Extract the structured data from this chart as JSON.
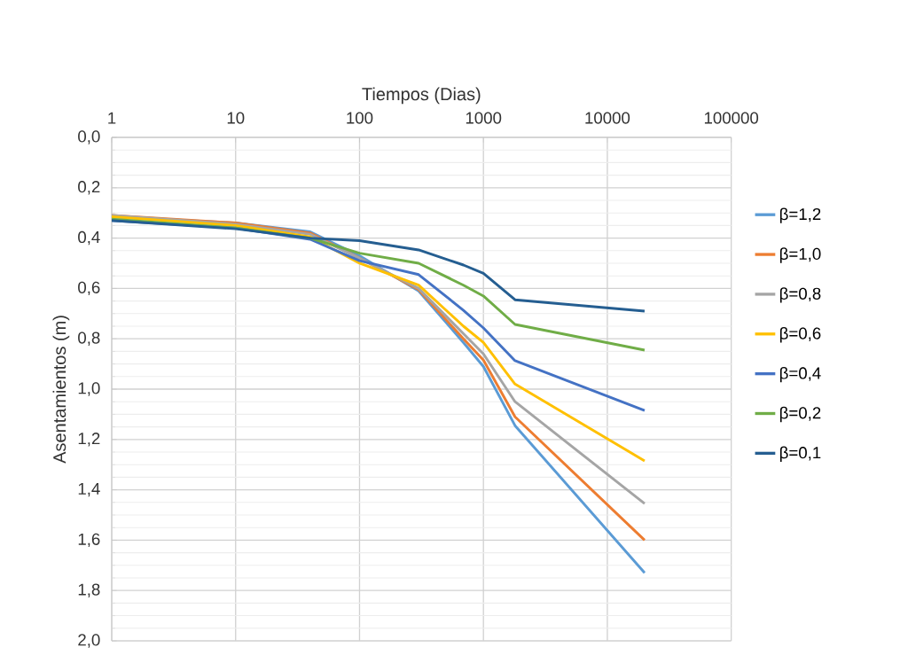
{
  "chart_data": {
    "type": "line",
    "xlabel": "Tiempos (Dias)",
    "ylabel": "Asentamientos (m)",
    "log": "x",
    "grid": true,
    "legend": "right",
    "xlim": [
      1,
      100000
    ],
    "xticks": [
      1,
      10,
      100,
      1000,
      10000,
      100000
    ],
    "ylim": [
      2.0,
      0.0
    ],
    "yticks": [
      {
        "value": 0.0,
        "label": "0,0"
      },
      {
        "value": 0.2,
        "label": "0,2"
      },
      {
        "value": 0.4,
        "label": "0,4"
      },
      {
        "value": 0.6,
        "label": "0,6"
      },
      {
        "value": 0.8,
        "label": "0,8"
      },
      {
        "value": 1.0,
        "label": "1,0"
      },
      {
        "value": 1.2,
        "label": "1,2"
      },
      {
        "value": 1.4,
        "label": "1,4"
      },
      {
        "value": 1.6,
        "label": "1,6"
      },
      {
        "value": 1.8,
        "label": "1,8"
      },
      {
        "value": 2.0,
        "label": "2,0"
      }
    ],
    "x": [
      1,
      10,
      40,
      100,
      300,
      690,
      1000,
      1800,
      20000
    ],
    "series": [
      {
        "name": "β=1,2",
        "color": "#5b9bd5",
        "values": [
          0.315,
          0.34,
          0.375,
          0.47,
          0.61,
          0.815,
          0.91,
          1.145,
          1.73
        ]
      },
      {
        "name": "β=1,0",
        "color": "#ed7d31",
        "values": [
          0.31,
          0.34,
          0.38,
          0.48,
          0.605,
          0.8,
          0.885,
          1.11,
          1.6
        ]
      },
      {
        "name": "β=0,8",
        "color": "#a5a5a5",
        "values": [
          0.31,
          0.345,
          0.385,
          0.48,
          0.6,
          0.78,
          0.86,
          1.05,
          1.455
        ]
      },
      {
        "name": "β=0,6",
        "color": "#ffc000",
        "values": [
          0.315,
          0.35,
          0.395,
          0.5,
          0.587,
          0.75,
          0.815,
          0.98,
          1.285
        ]
      },
      {
        "name": "β=0,4",
        "color": "#4472c4",
        "values": [
          0.33,
          0.36,
          0.405,
          0.49,
          0.545,
          0.687,
          0.757,
          0.887,
          1.085
        ]
      },
      {
        "name": "β=0,2",
        "color": "#70ad47",
        "values": [
          0.325,
          0.36,
          0.4,
          0.46,
          0.5,
          0.587,
          0.63,
          0.743,
          0.845
        ]
      },
      {
        "name": "β=0,1",
        "color": "#255e91",
        "values": [
          0.33,
          0.363,
          0.4,
          0.41,
          0.447,
          0.507,
          0.54,
          0.645,
          0.69
        ]
      }
    ]
  }
}
